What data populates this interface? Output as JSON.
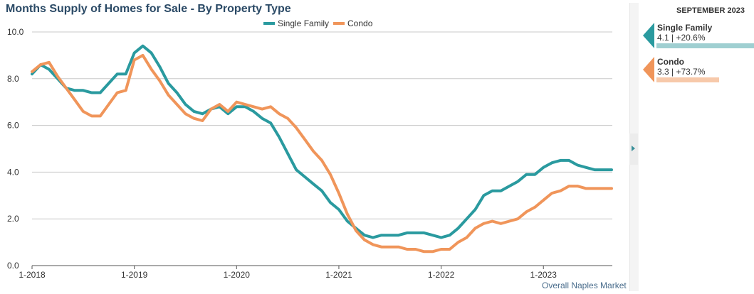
{
  "title": "Months Supply of Homes for Sale - By Property Type",
  "footer": "Overall Naples Market",
  "panel": {
    "period": "SEPTEMBER 2023",
    "cards": [
      {
        "name": "Single Family",
        "value": "4.1 | +20.6%",
        "color": "#2a9a9f",
        "bar_color": "#9fcfd1",
        "bar_fill": 1.0
      },
      {
        "name": "Condo",
        "value": "3.3 | +73.7%",
        "color": "#f0955a",
        "bar_color": "#f7c9aa",
        "bar_fill": 0.64
      }
    ]
  },
  "chart_data": {
    "type": "line",
    "title": "Months Supply of Homes for Sale - By Property Type",
    "x_tick_labels": [
      "1-2018",
      "1-2019",
      "1-2020",
      "1-2021",
      "1-2022",
      "1-2023"
    ],
    "y_tick_labels": [
      "0.0",
      "2.0",
      "4.0",
      "6.0",
      "8.0",
      "10.0"
    ],
    "ylim": [
      0,
      10
    ],
    "x_start": "2018-01",
    "x_end": "2023-09",
    "grid": true,
    "legend_position": "top-center",
    "series": [
      {
        "name": "Single Family",
        "color": "#2a9a9f",
        "values": [
          8.2,
          8.6,
          8.4,
          8.0,
          7.6,
          7.5,
          7.5,
          7.4,
          7.4,
          7.8,
          8.2,
          8.2,
          9.1,
          9.4,
          9.1,
          8.5,
          7.8,
          7.4,
          6.9,
          6.6,
          6.5,
          6.7,
          6.8,
          6.5,
          6.8,
          6.8,
          6.6,
          6.3,
          6.1,
          5.5,
          4.8,
          4.1,
          3.8,
          3.5,
          3.2,
          2.7,
          2.4,
          1.9,
          1.6,
          1.3,
          1.2,
          1.3,
          1.3,
          1.3,
          1.4,
          1.4,
          1.4,
          1.3,
          1.2,
          1.3,
          1.6,
          2.0,
          2.4,
          3.0,
          3.2,
          3.2,
          3.4,
          3.6,
          3.9,
          3.9,
          4.2,
          4.4,
          4.5,
          4.5,
          4.3,
          4.2,
          4.1,
          4.1,
          4.1
        ]
      },
      {
        "name": "Condo",
        "color": "#f0955a",
        "values": [
          8.3,
          8.6,
          8.7,
          8.1,
          7.6,
          7.1,
          6.6,
          6.4,
          6.4,
          6.9,
          7.4,
          7.5,
          8.8,
          9.0,
          8.4,
          7.9,
          7.3,
          6.9,
          6.5,
          6.3,
          6.2,
          6.7,
          6.9,
          6.6,
          7.0,
          6.9,
          6.8,
          6.7,
          6.8,
          6.5,
          6.3,
          5.9,
          5.4,
          4.9,
          4.5,
          3.9,
          3.1,
          2.2,
          1.5,
          1.1,
          0.9,
          0.8,
          0.8,
          0.8,
          0.7,
          0.7,
          0.6,
          0.6,
          0.7,
          0.7,
          1.0,
          1.2,
          1.6,
          1.8,
          1.9,
          1.8,
          1.9,
          2.0,
          2.3,
          2.5,
          2.8,
          3.1,
          3.2,
          3.4,
          3.4,
          3.3,
          3.3,
          3.3,
          3.3
        ]
      }
    ]
  }
}
